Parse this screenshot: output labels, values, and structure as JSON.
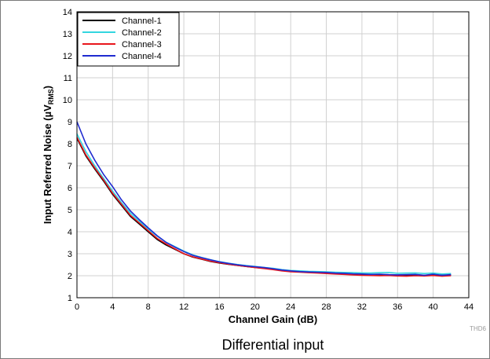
{
  "chart_data": {
    "type": "line",
    "xlabel": "Channel Gain (dB)",
    "ylabel": {
      "main": "Input Referred Noise (",
      "mu": "µ",
      "v": "V",
      "sub": "RMS",
      "close": ")"
    },
    "xlim": [
      0,
      44
    ],
    "ylim": [
      1,
      14
    ],
    "x_ticks": [
      0,
      4,
      8,
      12,
      16,
      20,
      24,
      28,
      32,
      36,
      40,
      44
    ],
    "y_ticks": [
      1,
      2,
      3,
      4,
      5,
      6,
      7,
      8,
      9,
      10,
      11,
      12,
      13,
      14
    ],
    "grid": true,
    "legend_position": "top-left",
    "code_label": "THD6",
    "caption": "Differential input",
    "series": [
      {
        "name": "Channel-1",
        "color": "#000000",
        "x": [
          0,
          1,
          2,
          3,
          4,
          5,
          6,
          7,
          8,
          9,
          10,
          11,
          12,
          13,
          14,
          15,
          16,
          17,
          18,
          19,
          20,
          21,
          22,
          23,
          24,
          25,
          26,
          27,
          28,
          29,
          30,
          31,
          32,
          33,
          34,
          35,
          36,
          37,
          38,
          39,
          40,
          41,
          42
        ],
        "y": [
          8.25,
          7.45,
          6.85,
          6.3,
          5.7,
          5.2,
          4.7,
          4.35,
          4.0,
          3.65,
          3.4,
          3.2,
          3.0,
          2.85,
          2.75,
          2.65,
          2.58,
          2.52,
          2.47,
          2.42,
          2.38,
          2.34,
          2.3,
          2.24,
          2.2,
          2.18,
          2.16,
          2.14,
          2.12,
          2.1,
          2.09,
          2.07,
          2.06,
          2.05,
          2.05,
          2.04,
          2.03,
          2.03,
          2.02,
          2.02,
          2.03,
          2.02,
          2.03
        ]
      },
      {
        "name": "Channel-2",
        "color": "#33d6e0",
        "x": [
          0,
          1,
          2,
          3,
          4,
          5,
          6,
          7,
          8,
          9,
          10,
          11,
          12,
          13,
          14,
          15,
          16,
          17,
          18,
          19,
          20,
          21,
          22,
          23,
          24,
          25,
          26,
          27,
          28,
          29,
          30,
          31,
          32,
          33,
          34,
          35,
          36,
          37,
          38,
          39,
          40,
          41,
          42
        ],
        "y": [
          8.45,
          7.65,
          7.0,
          6.42,
          5.85,
          5.32,
          4.85,
          4.48,
          4.12,
          3.8,
          3.52,
          3.32,
          3.12,
          2.95,
          2.83,
          2.73,
          2.64,
          2.57,
          2.51,
          2.46,
          2.42,
          2.38,
          2.34,
          2.28,
          2.24,
          2.22,
          2.2,
          2.19,
          2.18,
          2.16,
          2.15,
          2.14,
          2.13,
          2.12,
          2.14,
          2.15,
          2.11,
          2.12,
          2.13,
          2.1,
          2.12,
          2.08,
          2.1
        ]
      },
      {
        "name": "Channel-3",
        "color": "#e8161c",
        "x": [
          0,
          1,
          2,
          3,
          4,
          5,
          6,
          7,
          8,
          9,
          10,
          11,
          12,
          13,
          14,
          15,
          16,
          17,
          18,
          19,
          20,
          21,
          22,
          23,
          24,
          25,
          26,
          27,
          28,
          29,
          30,
          31,
          32,
          33,
          34,
          35,
          36,
          37,
          38,
          39,
          40,
          41,
          42
        ],
        "y": [
          8.3,
          7.5,
          6.9,
          6.35,
          5.75,
          5.25,
          4.75,
          4.4,
          4.05,
          3.7,
          3.45,
          3.22,
          3.0,
          2.86,
          2.76,
          2.66,
          2.59,
          2.53,
          2.47,
          2.42,
          2.37,
          2.33,
          2.28,
          2.22,
          2.18,
          2.16,
          2.14,
          2.12,
          2.1,
          2.08,
          2.06,
          2.04,
          2.02,
          2.01,
          2.0,
          2.01,
          1.99,
          1.98,
          2.0,
          1.99,
          2.01,
          1.98,
          2.0
        ]
      },
      {
        "name": "Channel-4",
        "color": "#1f2bd0",
        "x": [
          0,
          1,
          2,
          3,
          4,
          5,
          6,
          7,
          8,
          9,
          10,
          11,
          12,
          13,
          14,
          15,
          16,
          17,
          18,
          19,
          20,
          21,
          22,
          23,
          24,
          25,
          26,
          27,
          28,
          29,
          30,
          31,
          32,
          33,
          34,
          35,
          36,
          37,
          38,
          39,
          40,
          41,
          42
        ],
        "y": [
          9.0,
          8.0,
          7.25,
          6.6,
          6.05,
          5.45,
          4.95,
          4.55,
          4.18,
          3.82,
          3.52,
          3.3,
          3.1,
          2.93,
          2.82,
          2.72,
          2.63,
          2.56,
          2.5,
          2.45,
          2.41,
          2.37,
          2.32,
          2.26,
          2.22,
          2.19,
          2.17,
          2.16,
          2.15,
          2.12,
          2.11,
          2.09,
          2.08,
          2.06,
          2.07,
          2.05,
          2.04,
          2.05,
          2.06,
          2.02,
          2.07,
          2.02,
          2.05
        ]
      }
    ]
  }
}
